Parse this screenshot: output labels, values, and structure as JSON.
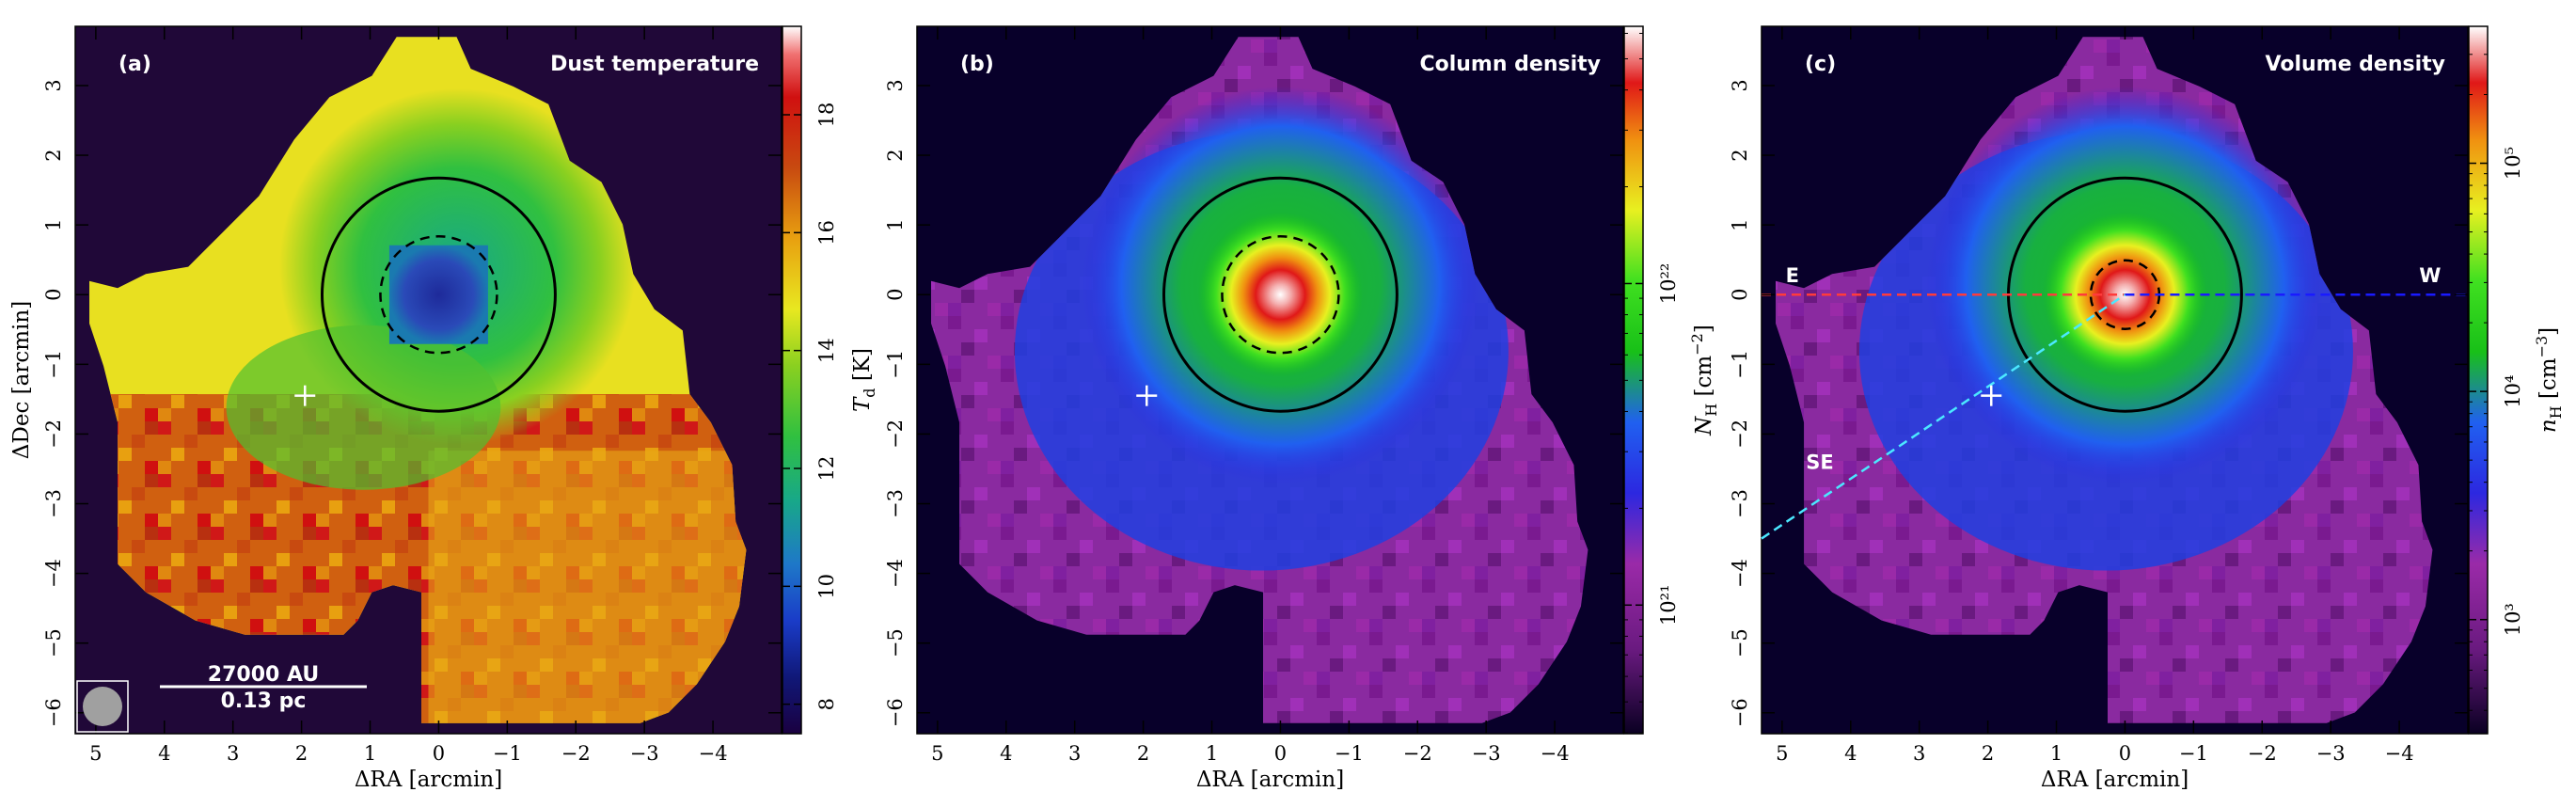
{
  "chart_data": [
    {
      "type": "heatmap",
      "panel_label": "(a)",
      "title": "Dust temperature",
      "xlabel": "ΔRA [arcmin]",
      "ylabel": "ΔDec [arcmin]",
      "xlim": [
        5.3,
        -5.0
      ],
      "ylim": [
        -6.3,
        3.85
      ],
      "x_ticks": [
        "5",
        "4",
        "3",
        "2",
        "1",
        "0",
        "−1",
        "−2",
        "−3",
        "−4"
      ],
      "y_ticks": [
        "3",
        "2",
        "1",
        "0",
        "−1",
        "−2",
        "−3",
        "−4",
        "−5",
        "−6"
      ],
      "colorbar": {
        "label": "T_d [K]",
        "label_main": "T",
        "label_sub": "d",
        "label_unit": " [K]",
        "scale": "linear",
        "range": [
          7.5,
          19.5
        ],
        "ticks": [
          "8",
          "10",
          "12",
          "14",
          "16",
          "18"
        ],
        "tick_values": [
          8,
          10,
          12,
          14,
          16,
          18
        ]
      },
      "colormap": "temperature",
      "circle_radius_arcmin": 1.7,
      "dashed_radius_arcmin": 0.85,
      "marker_position": [
        1.95,
        -1.45
      ],
      "beam": true,
      "scale_bar": {
        "top_label": "27000 AU",
        "bottom_label": "0.13 pc"
      }
    },
    {
      "type": "heatmap",
      "panel_label": "(b)",
      "title": "Column density",
      "xlabel": "ΔRA [arcmin]",
      "ylabel": "",
      "xlim": [
        5.3,
        -5.0
      ],
      "ylim": [
        -6.3,
        3.85
      ],
      "x_ticks": [
        "5",
        "4",
        "3",
        "2",
        "1",
        "0",
        "−1",
        "−2",
        "−3",
        "−4"
      ],
      "y_ticks": [
        "3",
        "2",
        "1",
        "0",
        "−1",
        "−2",
        "−3",
        "−4",
        "−5",
        "−6"
      ],
      "colorbar": {
        "label": "N_H [cm^-2]",
        "label_main": "N",
        "label_sub": "H",
        "label_unit": " [cm",
        "label_exp": "−2",
        "label_close": "]",
        "scale": "log",
        "range_log": [
          20.6,
          22.8
        ],
        "ticks": [
          "10²¹",
          "10²²"
        ],
        "tick_values_log": [
          21,
          22
        ]
      },
      "colormap": "density",
      "circle_radius_arcmin": 1.7,
      "dashed_radius_arcmin": 0.85,
      "marker_position": [
        1.95,
        -1.45
      ]
    },
    {
      "type": "heatmap",
      "panel_label": "(c)",
      "title": "Volume density",
      "xlabel": "ΔRA [arcmin]",
      "ylabel": "",
      "xlim": [
        5.3,
        -5.0
      ],
      "ylim": [
        -6.3,
        3.85
      ],
      "x_ticks": [
        "5",
        "4",
        "3",
        "2",
        "1",
        "0",
        "−1",
        "−2",
        "−3",
        "−4"
      ],
      "y_ticks": [
        "3",
        "2",
        "1",
        "0",
        "−1",
        "−2",
        "−3",
        "−4",
        "−5",
        "−6"
      ],
      "colorbar": {
        "label": "n_H [cm^-3]",
        "label_main": "n",
        "label_sub": "H",
        "label_unit": " [cm",
        "label_exp": "−3",
        "label_close": "]",
        "scale": "log",
        "range_log": [
          2.5,
          5.6
        ],
        "ticks": [
          "10³",
          "10⁴",
          "10⁵"
        ],
        "tick_values_log": [
          3,
          4,
          5
        ]
      },
      "colormap": "density",
      "circle_radius_arcmin": 1.7,
      "dashed_radius_arcmin": 0.5,
      "marker_position": [
        1.95,
        -1.45
      ],
      "cuts": [
        {
          "label": "E",
          "color": "#ff3b3b",
          "from": [
            5.3,
            0
          ],
          "to": [
            0,
            0
          ]
        },
        {
          "label": "W",
          "color": "#1a1aff",
          "from": [
            0,
            0
          ],
          "to": [
            -5.0,
            0
          ]
        },
        {
          "label": "SE",
          "color": "#4be8ff",
          "from": [
            5.3,
            -3.5
          ],
          "to": [
            0,
            0
          ]
        }
      ],
      "cut_labels": {
        "E": {
          "text": "E",
          "at": [
            4.85,
            0.18
          ]
        },
        "W": {
          "text": "W",
          "at": [
            -4.45,
            0.18
          ]
        },
        "SE": {
          "text": "SE",
          "at": [
            4.45,
            -2.5
          ]
        }
      }
    }
  ]
}
